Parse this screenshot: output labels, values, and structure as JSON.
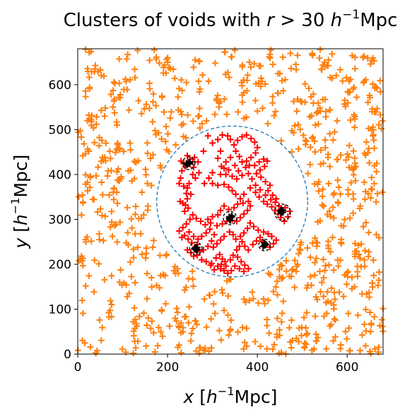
{
  "chart_data": {
    "type": "scatter",
    "title_prefix": "Clusters of voids with ",
    "title_var": "r",
    "title_rel": " > 30 ",
    "title_h": "h",
    "title_sup": "−1",
    "title_unit": "Mpc",
    "xlabel_var": "x",
    "ylabel_var": "y",
    "label_open": " [",
    "label_h": "h",
    "label_sup": "−1",
    "label_unit": "Mpc]",
    "xlim": [
      0,
      680
    ],
    "ylim": [
      0,
      680
    ],
    "xticks": [
      0,
      200,
      400,
      600
    ],
    "yticks": [
      0,
      100,
      200,
      300,
      400,
      500,
      600
    ],
    "xtick_labels": [
      "0",
      "200",
      "400",
      "600"
    ],
    "ytick_labels": [
      "0",
      "100",
      "200",
      "300",
      "400",
      "500",
      "600"
    ],
    "grid": false,
    "colors": {
      "background_voids": "#ff7f0e",
      "sphere_voids": "#ff0000",
      "sphere_outline": "#1f77b4",
      "cluster_rings": "#000000"
    },
    "sphere": {
      "center": [
        344,
        340
      ],
      "radius": 168
    },
    "clusters": [
      {
        "center": [
          247,
          425
        ],
        "radius": 14
      },
      {
        "center": [
          339,
          303
        ],
        "radius": 15
      },
      {
        "center": [
          456,
          316
        ],
        "radius": 18
      },
      {
        "center": [
          263,
          235
        ],
        "radius": 14
      },
      {
        "center": [
          416,
          243
        ],
        "radius": 13
      }
    ],
    "background_point_count": 900,
    "sphere_points": [
      [
        230,
        430
      ],
      [
        232,
        408
      ],
      [
        229,
        392
      ],
      [
        226,
        380
      ],
      [
        236,
        374
      ],
      [
        244,
        370
      ],
      [
        242,
        358
      ],
      [
        252,
        356
      ],
      [
        228,
        340
      ],
      [
        234,
        336
      ],
      [
        240,
        332
      ],
      [
        246,
        325
      ],
      [
        238,
        318
      ],
      [
        244,
        346
      ],
      [
        248,
        380
      ],
      [
        256,
        400
      ],
      [
        262,
        392
      ],
      [
        270,
        404
      ],
      [
        258,
        416
      ],
      [
        240,
        418
      ],
      [
        250,
        434
      ],
      [
        260,
        438
      ],
      [
        244,
        442
      ],
      [
        236,
        426
      ],
      [
        256,
        428
      ],
      [
        268,
        428
      ],
      [
        280,
        452
      ],
      [
        290,
        486
      ],
      [
        300,
        470
      ],
      [
        312,
        478
      ],
      [
        322,
        488
      ],
      [
        334,
        486
      ],
      [
        340,
        478
      ],
      [
        318,
        452
      ],
      [
        312,
        436
      ],
      [
        320,
        418
      ],
      [
        330,
        400
      ],
      [
        300,
        404
      ],
      [
        292,
        392
      ],
      [
        282,
        380
      ],
      [
        300,
        380
      ],
      [
        312,
        376
      ],
      [
        326,
        378
      ],
      [
        336,
        372
      ],
      [
        344,
        364
      ],
      [
        352,
        356
      ],
      [
        362,
        346
      ],
      [
        356,
        334
      ],
      [
        348,
        326
      ],
      [
        336,
        322
      ],
      [
        326,
        330
      ],
      [
        318,
        320
      ],
      [
        312,
        310
      ],
      [
        300,
        306
      ],
      [
        290,
        300
      ],
      [
        296,
        292
      ],
      [
        310,
        286
      ],
      [
        322,
        290
      ],
      [
        332,
        296
      ],
      [
        344,
        298
      ],
      [
        354,
        296
      ],
      [
        362,
        304
      ],
      [
        370,
        312
      ],
      [
        378,
        320
      ],
      [
        384,
        330
      ],
      [
        380,
        340
      ],
      [
        368,
        336
      ],
      [
        370,
        356
      ],
      [
        384,
        370
      ],
      [
        396,
        360
      ],
      [
        404,
        350
      ],
      [
        414,
        340
      ],
      [
        422,
        334
      ],
      [
        432,
        328
      ],
      [
        440,
        320
      ],
      [
        446,
        312
      ],
      [
        452,
        304
      ],
      [
        460,
        296
      ],
      [
        468,
        306
      ],
      [
        472,
        318
      ],
      [
        462,
        326
      ],
      [
        452,
        322
      ],
      [
        448,
        330
      ],
      [
        440,
        338
      ],
      [
        430,
        344
      ],
      [
        418,
        354
      ],
      [
        406,
        366
      ],
      [
        396,
        376
      ],
      [
        388,
        390
      ],
      [
        380,
        402
      ],
      [
        374,
        416
      ],
      [
        366,
        428
      ],
      [
        360,
        440
      ],
      [
        352,
        452
      ],
      [
        348,
        466
      ],
      [
        356,
        476
      ],
      [
        366,
        484
      ],
      [
        376,
        488
      ],
      [
        386,
        480
      ],
      [
        394,
        472
      ],
      [
        400,
        460
      ],
      [
        396,
        448
      ],
      [
        386,
        438
      ],
      [
        376,
        430
      ],
      [
        382,
        420
      ],
      [
        394,
        420
      ],
      [
        404,
        428
      ],
      [
        414,
        434
      ],
      [
        422,
        430
      ],
      [
        416,
        418
      ],
      [
        406,
        410
      ],
      [
        398,
        402
      ],
      [
        408,
        394
      ],
      [
        418,
        384
      ],
      [
        428,
        376
      ],
      [
        424,
        364
      ],
      [
        434,
        354
      ],
      [
        442,
        346
      ],
      [
        304,
        266
      ],
      [
        298,
        252
      ],
      [
        290,
        240
      ],
      [
        280,
        232
      ],
      [
        272,
        228
      ],
      [
        266,
        220
      ],
      [
        276,
        210
      ],
      [
        286,
        206
      ],
      [
        298,
        202
      ],
      [
        308,
        214
      ],
      [
        316,
        222
      ],
      [
        322,
        212
      ],
      [
        328,
        206
      ],
      [
        320,
        200
      ],
      [
        312,
        196
      ],
      [
        304,
        188
      ],
      [
        296,
        198
      ],
      [
        318,
        190
      ],
      [
        330,
        196
      ],
      [
        340,
        210
      ],
      [
        346,
        220
      ],
      [
        354,
        232
      ],
      [
        360,
        240
      ],
      [
        366,
        250
      ],
      [
        372,
        240
      ],
      [
        380,
        232
      ],
      [
        390,
        244
      ],
      [
        398,
        252
      ],
      [
        406,
        260
      ],
      [
        412,
        250
      ],
      [
        420,
        244
      ],
      [
        428,
        238
      ],
      [
        436,
        246
      ],
      [
        442,
        254
      ],
      [
        432,
        262
      ],
      [
        424,
        268
      ],
      [
        414,
        272
      ],
      [
        402,
        276
      ],
      [
        392,
        284
      ],
      [
        384,
        292
      ],
      [
        378,
        280
      ],
      [
        370,
        270
      ],
      [
        362,
        262
      ],
      [
        352,
        256
      ],
      [
        346,
        266
      ],
      [
        338,
        272
      ],
      [
        326,
        262
      ],
      [
        318,
        254
      ],
      [
        310,
        246
      ],
      [
        302,
        238
      ],
      [
        356,
        216
      ],
      [
        364,
        206
      ],
      [
        372,
        198
      ],
      [
        380,
        190
      ],
      [
        370,
        184
      ],
      [
        360,
        190
      ],
      [
        350,
        196
      ],
      [
        342,
        186
      ],
      [
        334,
        180
      ],
      [
        326,
        186
      ],
      [
        244,
        232
      ],
      [
        252,
        226
      ],
      [
        258,
        218
      ],
      [
        266,
        244
      ],
      [
        254,
        248
      ],
      [
        246,
        256
      ],
      [
        238,
        264
      ],
      [
        248,
        272
      ],
      [
        258,
        262
      ],
      [
        268,
        256
      ],
      [
        276,
        262
      ],
      [
        286,
        270
      ],
      [
        294,
        278
      ],
      [
        284,
        288
      ],
      [
        274,
        296
      ],
      [
        264,
        302
      ],
      [
        256,
        310
      ],
      [
        250,
        300
      ],
      [
        242,
        290
      ],
      [
        234,
        282
      ],
      [
        226,
        274
      ],
      [
        232,
        260
      ],
      [
        340,
        438
      ],
      [
        330,
        428
      ],
      [
        350,
        420
      ],
      [
        358,
        408
      ],
      [
        366,
        398
      ],
      [
        354,
        390
      ],
      [
        344,
        396
      ],
      [
        336,
        410
      ],
      [
        326,
        414
      ],
      [
        318,
        400
      ]
    ]
  }
}
